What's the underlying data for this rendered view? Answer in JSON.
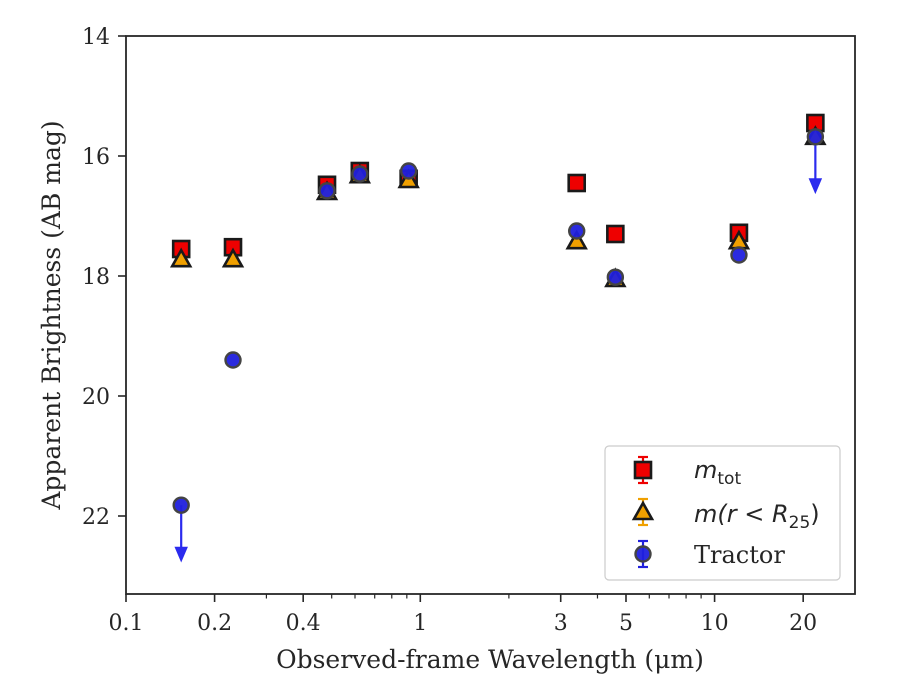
{
  "chart_data": {
    "type": "scatter",
    "title": "",
    "xlabel": "Observed-frame Wavelength (μm)",
    "ylabel": "Apparent Brightness (AB mag)",
    "xscale": "log",
    "xlim": [
      0.1,
      30
    ],
    "ylim": [
      23.3,
      14
    ],
    "y_inverted": true,
    "x_ticks": [
      0.1,
      0.2,
      0.4,
      1,
      3,
      5,
      10,
      20
    ],
    "x_tick_labels": [
      "0.1",
      "0.2",
      "0.4",
      "1",
      "3",
      "5",
      "10",
      "20"
    ],
    "y_ticks": [
      14,
      16,
      18,
      20,
      22
    ],
    "y_tick_labels": [
      "14",
      "16",
      "18",
      "20",
      "22"
    ],
    "grid": false,
    "legend_position": "lower-right",
    "series": [
      {
        "name": "m_tot",
        "legend_main": "m",
        "legend_sub": "tot",
        "marker": "square",
        "color": "#ee0000",
        "x": [
          0.154,
          0.231,
          0.482,
          0.623,
          0.913,
          3.4,
          4.6,
          12.1,
          22.0
        ],
        "y": [
          17.55,
          17.52,
          16.48,
          16.25,
          16.38,
          16.45,
          17.3,
          17.28,
          15.45
        ]
      },
      {
        "name": "m(r < R25)",
        "legend_main": "m(r < R",
        "legend_sub": "25",
        "legend_close": ")",
        "marker": "triangle",
        "color": "#f0a000",
        "x": [
          0.154,
          0.231,
          0.482,
          0.623,
          0.913,
          3.4,
          4.6,
          12.1,
          22.0
        ],
        "y": [
          17.72,
          17.72,
          16.6,
          16.32,
          16.4,
          17.42,
          18.05,
          17.42,
          15.68
        ]
      },
      {
        "name": "Tractor",
        "marker": "circle",
        "color": "#2020dd",
        "x": [
          0.154,
          0.231,
          0.482,
          0.623,
          0.913,
          3.4,
          4.6,
          12.1,
          22.0
        ],
        "y": [
          21.82,
          19.4,
          16.58,
          16.3,
          16.25,
          17.25,
          18.02,
          17.65,
          15.68
        ],
        "upper_limits": [
          true,
          false,
          false,
          false,
          false,
          false,
          false,
          false,
          true
        ]
      }
    ]
  }
}
